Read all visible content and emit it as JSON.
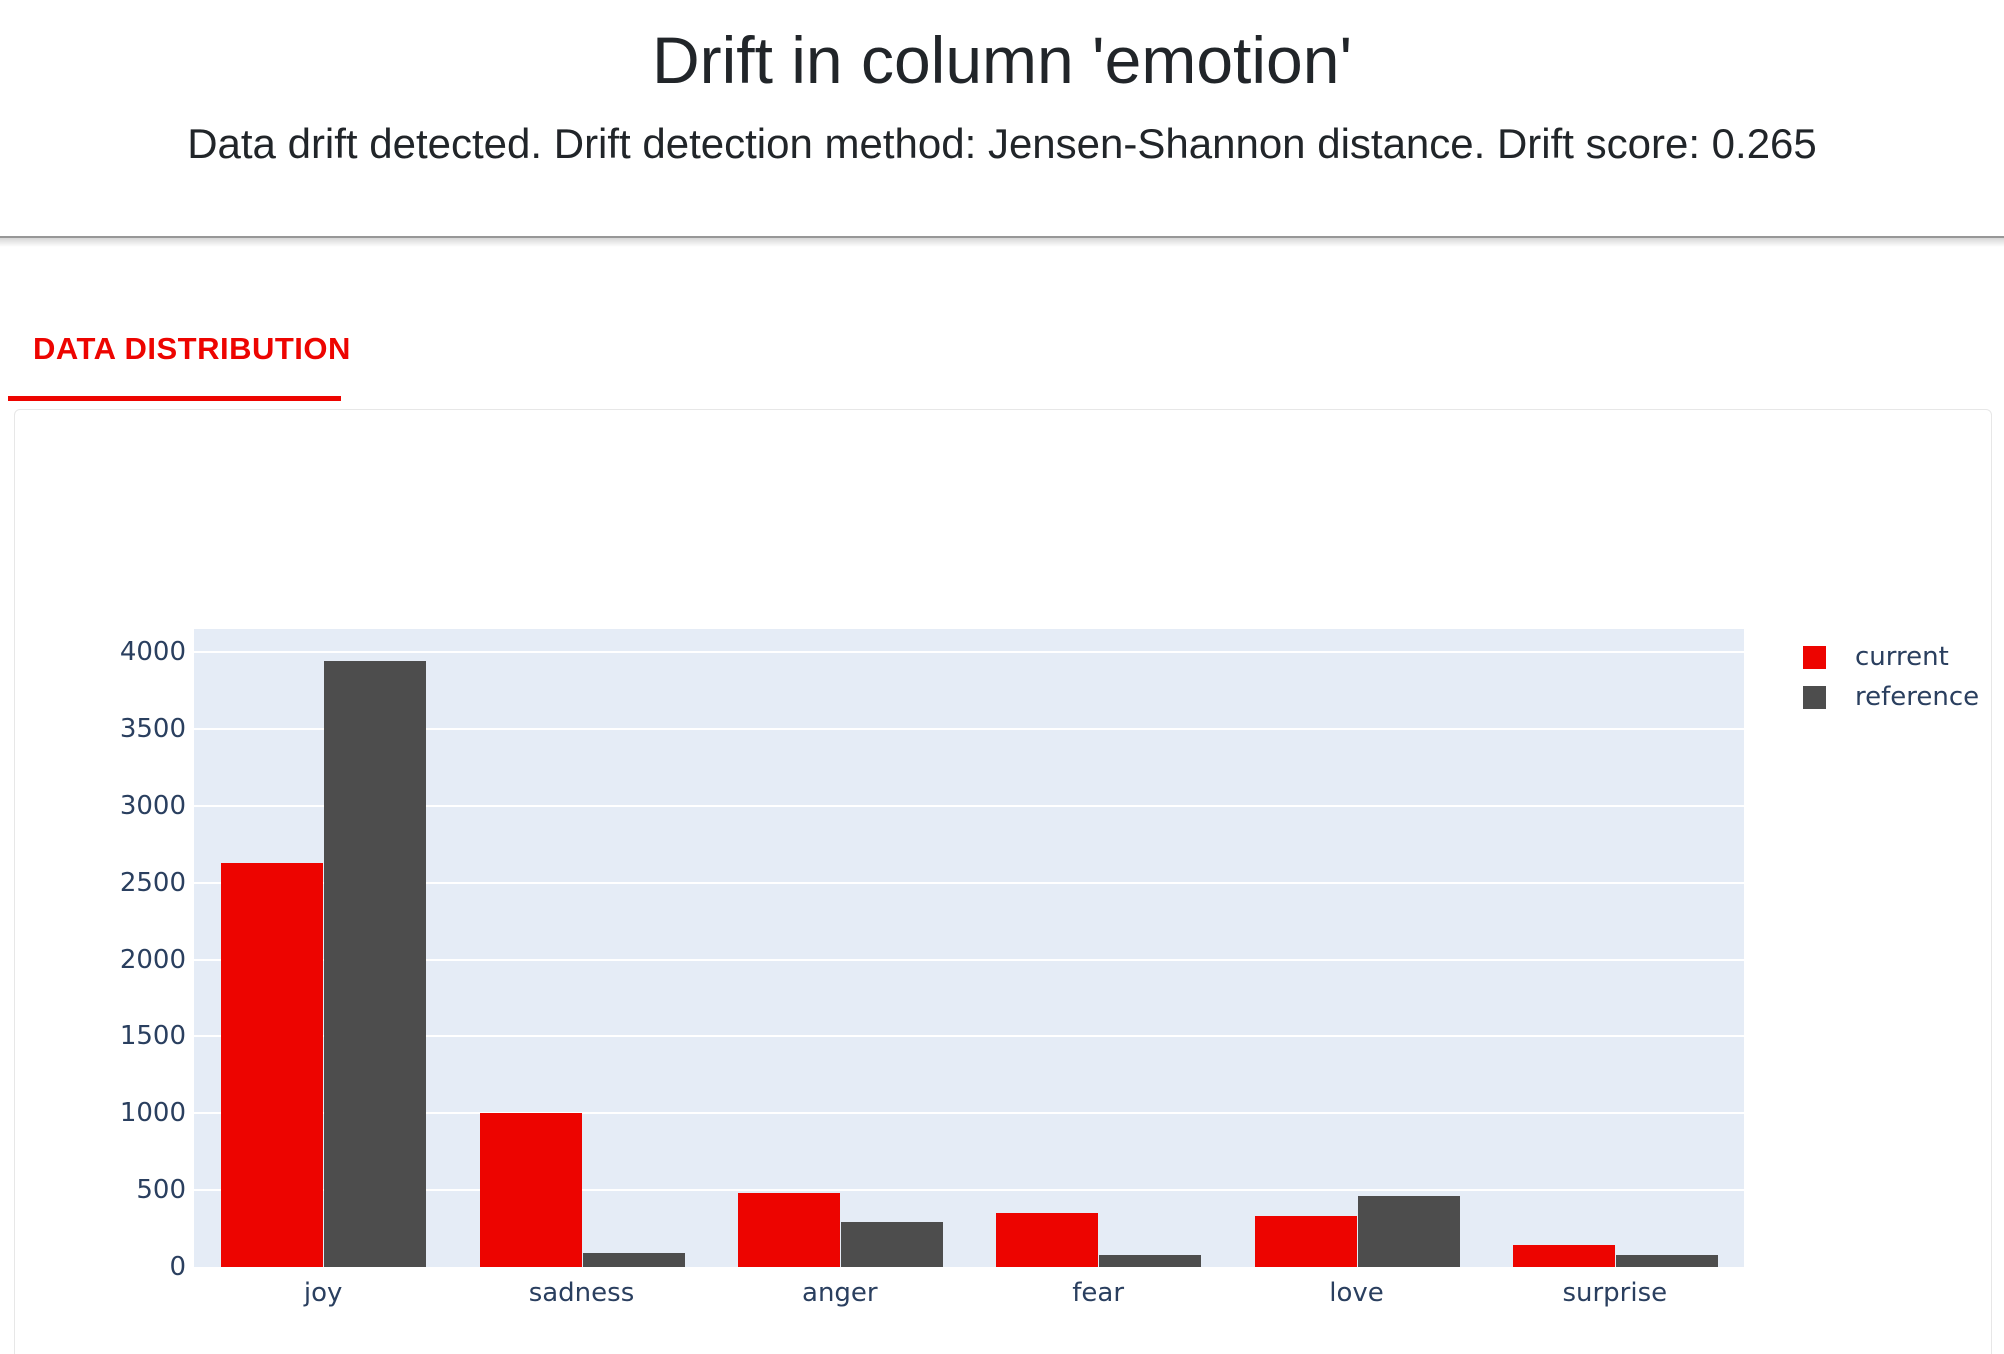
{
  "header": {
    "title": "Drift in column 'emotion'",
    "subtitle": "Data drift detected. Drift detection method: Jensen-Shannon distance. Drift score: 0.265"
  },
  "tabs": [
    {
      "label": "DATA DISTRIBUTION",
      "active": true
    }
  ],
  "colors": {
    "accent_red": "#ed0400",
    "reference_gray": "#4d4d4d",
    "plot_background": "#e5ecf6",
    "gridline": "#ffffff",
    "tick_label": "#2a3f5f",
    "title_text": "#212529"
  },
  "chart_data": {
    "type": "bar",
    "title": "",
    "xlabel": "",
    "ylabel": "",
    "categories": [
      "joy",
      "sadness",
      "anger",
      "fear",
      "love",
      "surprise"
    ],
    "series": [
      {
        "name": "current",
        "color": "#ed0400",
        "values": [
          2630,
          1000,
          480,
          350,
          330,
          140
        ]
      },
      {
        "name": "reference",
        "color": "#4d4d4d",
        "values": [
          3940,
          90,
          290,
          80,
          460,
          75
        ]
      }
    ],
    "ylim": [
      0,
      4150
    ],
    "yticks": [
      0,
      500,
      1000,
      1500,
      2000,
      2500,
      3000,
      3500,
      4000
    ],
    "grid": true,
    "legend_position": "right-top"
  }
}
